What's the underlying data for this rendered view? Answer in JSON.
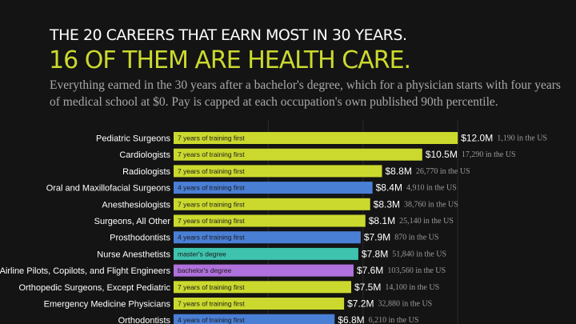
{
  "header": {
    "title": "THE 20 CAREERS THAT EARN MOST IN 30 YEARS.",
    "headline": "16 OF THEM ARE HEALTH CARE.",
    "subtitle": "Everything earned in the 30 years after a bachelor's degree, which for a physician starts with four years of medical school at $0. Pay is capped at each occupation's own published 90th percentile."
  },
  "colors": {
    "background": "#141414",
    "health_care_7yr": "#cbd92e",
    "health_care_4yr": "#4a7fd6",
    "masters": "#3ec3ae",
    "bachelors": "#b071dc"
  },
  "chart_data": {
    "type": "bar",
    "orientation": "horizontal",
    "categories": [
      "Pediatric Surgeons",
      "Cardiologists",
      "Radiologists",
      "Oral and Maxillofacial Surgeons",
      "Anesthesiologists",
      "Surgeons, All Other",
      "Prosthodontists",
      "Nurse Anesthetists",
      "Airline Pilots, Copilots, and Flight Engineers",
      "Orthopedic Surgeons, Except Pediatric",
      "Emergency Medicine Physicians",
      "Orthodontists"
    ],
    "values": [
      12.0,
      10.5,
      8.8,
      8.4,
      8.3,
      8.1,
      7.9,
      7.8,
      7.6,
      7.5,
      7.2,
      6.8
    ],
    "value_labels": [
      "$12.0M",
      "$10.5M",
      "$8.8M",
      "$8.4M",
      "$8.3M",
      "$8.1M",
      "$7.9M",
      "$7.8M",
      "$7.6M",
      "$7.5M",
      "$7.2M",
      "$6.8M"
    ],
    "training_labels": [
      "7 years of training first",
      "7 years of training first",
      "7 years of training first",
      "4 years of training first",
      "7 years of training first",
      "7 years of training first",
      "4 years of training first",
      "master's degree",
      "bachelor's degree",
      "7 years of training first",
      "7 years of training first",
      "4 years of training first"
    ],
    "training_group": [
      "7yr",
      "7yr",
      "7yr",
      "4yr",
      "7yr",
      "7yr",
      "4yr",
      "masters",
      "bachelors",
      "7yr",
      "7yr",
      "4yr"
    ],
    "employment_labels": [
      "1,190 in the US",
      "17,290 in the US",
      "26,770 in the US",
      "4,910 in the US",
      "38,760 in the US",
      "25,140 in the US",
      "870 in the US",
      "51,840 in the US",
      "103,560 in the US",
      "14,100 in the US",
      "32,880 in the US",
      "6,210 in the US"
    ],
    "xlim": [
      0,
      13.8
    ],
    "grid": true
  }
}
